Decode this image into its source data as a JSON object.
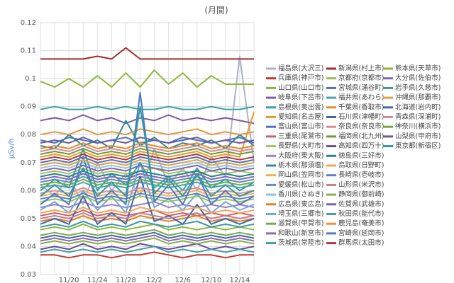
{
  "chart_data": {
    "type": "line",
    "title": "(月間)",
    "ylabel": "μSv/h",
    "categories": [
      null,
      null,
      "11/20",
      null,
      "11/24",
      null,
      "11/28",
      null,
      "12/2",
      null,
      "12/6",
      null,
      "12/10",
      null,
      "12/14",
      null
    ],
    "ylim": [
      0.03,
      0.12
    ],
    "yticks": [
      0.03,
      0.04,
      0.05,
      0.06,
      0.07,
      0.08,
      0.09,
      0.1,
      0.11,
      0.12
    ],
    "grid": true,
    "series": [
      {
        "name": "福島県(大沢三)",
        "color": "#aab4c8",
        "values": [
          0.062,
          0.058,
          0.065,
          0.055,
          0.07,
          0.06,
          0.066,
          0.058,
          0.075,
          0.062,
          0.068,
          0.06,
          0.072,
          0.065,
          0.108,
          0.07
        ]
      },
      {
        "name": "兵庫県(神戸市)",
        "color": "#c0392b",
        "values": [
          0.037,
          0.037,
          0.036,
          0.037,
          0.037,
          0.036,
          0.037,
          0.037,
          0.038,
          0.037,
          0.036,
          0.037,
          0.037,
          0.036,
          0.037,
          0.037
        ]
      },
      {
        "name": "山口県(山口市)",
        "color": "#8cb43c",
        "values": [
          0.046,
          0.047,
          0.046,
          0.048,
          0.046,
          0.047,
          0.046,
          0.047,
          0.048,
          0.046,
          0.047,
          0.046,
          0.047,
          0.046,
          0.047,
          0.046
        ]
      },
      {
        "name": "岐阜県(下呂市)",
        "color": "#7d5ba6",
        "values": [
          0.085,
          0.086,
          0.085,
          0.087,
          0.085,
          0.086,
          0.084,
          0.086,
          0.085,
          0.087,
          0.085,
          0.086,
          0.085,
          0.086,
          0.085,
          0.084
        ]
      },
      {
        "name": "島根県(奥出雲)",
        "color": "#3a9fa6",
        "values": [
          0.089,
          0.09,
          0.089,
          0.089,
          0.09,
          0.089,
          0.09,
          0.089,
          0.089,
          0.09,
          0.089,
          0.089,
          0.09,
          0.089,
          0.089,
          0.09
        ]
      },
      {
        "name": "愛知県(名古屋)",
        "color": "#e89a2f",
        "values": [
          0.072,
          0.073,
          0.072,
          0.074,
          0.072,
          0.073,
          0.072,
          0.074,
          0.073,
          0.072,
          0.073,
          0.074,
          0.072,
          0.073,
          0.072,
          0.088
        ]
      },
      {
        "name": "富山県(富山市)",
        "color": "#4a74b8",
        "values": [
          0.078,
          0.077,
          0.079,
          0.078,
          0.077,
          0.078,
          0.079,
          0.077,
          0.078,
          0.077,
          0.079,
          0.078,
          0.077,
          0.078,
          0.079,
          0.077
        ]
      },
      {
        "name": "三重県(尾鷲市)",
        "color": "#c9626b",
        "values": [
          0.051,
          0.052,
          0.051,
          0.053,
          0.051,
          0.052,
          0.051,
          0.052,
          0.053,
          0.051,
          0.052,
          0.051,
          0.052,
          0.051,
          0.052,
          0.051
        ]
      },
      {
        "name": "長野県(大町市)",
        "color": "#a3c45a",
        "values": [
          0.066,
          0.067,
          0.066,
          0.068,
          0.066,
          0.067,
          0.066,
          0.067,
          0.068,
          0.066,
          0.067,
          0.066,
          0.067,
          0.066,
          0.067,
          0.066
        ]
      },
      {
        "name": "大阪府(東大阪)",
        "color": "#9c7ec0",
        "values": [
          0.054,
          0.055,
          0.054,
          0.056,
          0.054,
          0.055,
          0.054,
          0.055,
          0.056,
          0.054,
          0.055,
          0.054,
          0.055,
          0.054,
          0.055,
          0.054
        ]
      },
      {
        "name": "栃木県(那須塩)",
        "color": "#2f8b9a",
        "values": [
          0.076,
          0.075,
          0.08,
          0.076,
          0.078,
          0.075,
          0.085,
          0.076,
          0.079,
          0.075,
          0.077,
          0.076,
          0.078,
          0.075,
          0.08,
          0.076
        ]
      },
      {
        "name": "岡山県(笠岡市)",
        "color": "#f0b04a",
        "values": [
          0.058,
          0.059,
          0.058,
          0.06,
          0.058,
          0.059,
          0.058,
          0.06,
          0.059,
          0.058,
          0.059,
          0.06,
          0.058,
          0.059,
          0.058,
          0.059
        ]
      },
      {
        "name": "愛媛県(松山市)",
        "color": "#5b8fd0",
        "values": [
          0.063,
          0.064,
          0.063,
          0.065,
          0.063,
          0.064,
          0.063,
          0.065,
          0.064,
          0.063,
          0.064,
          0.065,
          0.063,
          0.064,
          0.063,
          0.064
        ]
      },
      {
        "name": "香川県(さぬき)",
        "color": "#8fc0e0",
        "values": [
          0.068,
          0.069,
          0.068,
          0.07,
          0.068,
          0.069,
          0.068,
          0.07,
          0.069,
          0.068,
          0.069,
          0.07,
          0.068,
          0.069,
          0.068,
          0.069
        ]
      },
      {
        "name": "広島県(東広島)",
        "color": "#d9822b",
        "values": [
          0.049,
          0.05,
          0.049,
          0.051,
          0.049,
          0.05,
          0.049,
          0.051,
          0.05,
          0.049,
          0.05,
          0.051,
          0.049,
          0.05,
          0.049,
          0.05
        ]
      },
      {
        "name": "埼玉県(三郷市)",
        "color": "#6fa8dc",
        "values": [
          0.053,
          0.056,
          0.052,
          0.06,
          0.053,
          0.058,
          0.052,
          0.07,
          0.054,
          0.057,
          0.053,
          0.059,
          0.052,
          0.056,
          0.053,
          0.055
        ]
      },
      {
        "name": "滋賀県(甲賀市)",
        "color": "#7aa84a",
        "values": [
          0.044,
          0.045,
          0.044,
          0.045,
          0.044,
          0.045,
          0.044,
          0.045,
          0.046,
          0.044,
          0.045,
          0.044,
          0.045,
          0.044,
          0.045,
          0.044
        ]
      },
      {
        "name": "和歌山(新宮市)",
        "color": "#8a6bb0",
        "values": [
          0.042,
          0.043,
          0.042,
          0.043,
          0.042,
          0.043,
          0.042,
          0.043,
          0.044,
          0.042,
          0.043,
          0.042,
          0.043,
          0.042,
          0.043,
          0.042
        ]
      },
      {
        "name": "茨城県(常陸市)",
        "color": "#3aa0a0",
        "values": [
          0.06,
          0.064,
          0.061,
          0.075,
          0.06,
          0.066,
          0.062,
          0.07,
          0.061,
          0.065,
          0.06,
          0.068,
          0.061,
          0.064,
          0.06,
          0.063
        ]
      },
      {
        "name": "新潟県(村上市)",
        "color": "#a52a2a",
        "values": [
          0.107,
          0.107,
          0.107,
          0.107,
          0.108,
          0.107,
          0.111,
          0.107,
          0.107,
          0.107,
          0.107,
          0.107,
          0.107,
          0.107,
          0.107,
          0.107
        ]
      },
      {
        "name": "京都府(京都市)",
        "color": "#9bbf4f",
        "values": [
          0.056,
          0.057,
          0.056,
          0.058,
          0.056,
          0.057,
          0.056,
          0.058,
          0.057,
          0.056,
          0.057,
          0.058,
          0.056,
          0.057,
          0.056,
          0.057
        ]
      },
      {
        "name": "宮城県(涌谷町)",
        "color": "#4f6fb0",
        "values": [
          0.07,
          0.071,
          0.07,
          0.072,
          0.07,
          0.071,
          0.07,
          0.072,
          0.071,
          0.07,
          0.071,
          0.072,
          0.07,
          0.071,
          0.07,
          0.071
        ]
      },
      {
        "name": "福井県(あわら)",
        "color": "#4aa3b0",
        "values": [
          0.061,
          0.062,
          0.061,
          0.063,
          0.061,
          0.062,
          0.061,
          0.063,
          0.062,
          0.061,
          0.062,
          0.063,
          0.061,
          0.062,
          0.061,
          0.062
        ]
      },
      {
        "name": "千葉県(香取市)",
        "color": "#e38b2c",
        "values": [
          0.075,
          0.076,
          0.075,
          0.077,
          0.075,
          0.076,
          0.075,
          0.077,
          0.076,
          0.075,
          0.076,
          0.077,
          0.075,
          0.076,
          0.075,
          0.076
        ]
      },
      {
        "name": "石川県(津幡町)",
        "color": "#3f66a8",
        "values": [
          0.048,
          0.05,
          0.048,
          0.058,
          0.048,
          0.052,
          0.048,
          0.065,
          0.049,
          0.051,
          0.048,
          0.055,
          0.048,
          0.05,
          0.048,
          0.05
        ]
      },
      {
        "name": "奈良県(奈良市)",
        "color": "#d98b99",
        "values": [
          0.059,
          0.06,
          0.059,
          0.061,
          0.059,
          0.06,
          0.059,
          0.061,
          0.06,
          0.059,
          0.06,
          0.061,
          0.059,
          0.06,
          0.059,
          0.06
        ]
      },
      {
        "name": "福岡県(北九州)",
        "color": "#6b9e3a",
        "values": [
          0.073,
          0.074,
          0.073,
          0.075,
          0.073,
          0.074,
          0.073,
          0.075,
          0.074,
          0.073,
          0.074,
          0.075,
          0.073,
          0.074,
          0.073,
          0.074
        ]
      },
      {
        "name": "高知県(四万十)",
        "color": "#6a4c93",
        "values": [
          0.039,
          0.04,
          0.039,
          0.041,
          0.039,
          0.04,
          0.039,
          0.041,
          0.04,
          0.039,
          0.04,
          0.041,
          0.039,
          0.04,
          0.039,
          0.04
        ]
      },
      {
        "name": "徳島県(三好市)",
        "color": "#2c7f8c",
        "values": [
          0.065,
          0.066,
          0.065,
          0.067,
          0.065,
          0.066,
          0.065,
          0.067,
          0.066,
          0.065,
          0.066,
          0.067,
          0.065,
          0.066,
          0.065,
          0.066
        ]
      },
      {
        "name": "鳥取県(日野町)",
        "color": "#f2a65a",
        "values": [
          0.052,
          0.053,
          0.052,
          0.054,
          0.052,
          0.053,
          0.052,
          0.054,
          0.053,
          0.052,
          0.053,
          0.054,
          0.052,
          0.053,
          0.052,
          0.053
        ]
      },
      {
        "name": "長崎県(壱岐市)",
        "color": "#5a82c8",
        "values": [
          0.057,
          0.058,
          0.057,
          0.059,
          0.057,
          0.058,
          0.057,
          0.059,
          0.058,
          0.057,
          0.058,
          0.059,
          0.057,
          0.058,
          0.057,
          0.058
        ]
      },
      {
        "name": "山形県(米沢市)",
        "color": "#c77d8a",
        "values": [
          0.05,
          0.051,
          0.05,
          0.052,
          0.05,
          0.051,
          0.05,
          0.052,
          0.051,
          0.05,
          0.051,
          0.052,
          0.05,
          0.051,
          0.05,
          0.051
        ]
      },
      {
        "name": "静岡県(御前崎)",
        "color": "#86b04a",
        "values": [
          0.041,
          0.042,
          0.041,
          0.042,
          0.041,
          0.042,
          0.041,
          0.042,
          0.043,
          0.041,
          0.042,
          0.041,
          0.042,
          0.041,
          0.042,
          0.041
        ]
      },
      {
        "name": "佐賀県(武雄市)",
        "color": "#7b61a8",
        "values": [
          0.067,
          0.068,
          0.067,
          0.069,
          0.067,
          0.068,
          0.067,
          0.069,
          0.068,
          0.067,
          0.068,
          0.069,
          0.067,
          0.068,
          0.067,
          0.068
        ]
      },
      {
        "name": "秋田県(能代市)",
        "color": "#44a0a8",
        "values": [
          0.038,
          0.039,
          0.038,
          0.039,
          0.038,
          0.039,
          0.038,
          0.039,
          0.04,
          0.038,
          0.039,
          0.038,
          0.039,
          0.038,
          0.039,
          0.038
        ]
      },
      {
        "name": "鹿児島(奄美市)",
        "color": "#e8953a",
        "values": [
          0.08,
          0.081,
          0.08,
          0.082,
          0.08,
          0.081,
          0.08,
          0.082,
          0.081,
          0.08,
          0.081,
          0.082,
          0.08,
          0.081,
          0.08,
          0.081
        ]
      },
      {
        "name": "宮崎県(延岡市)",
        "color": "#4c7cc0",
        "values": [
          0.055,
          0.059,
          0.055,
          0.072,
          0.055,
          0.06,
          0.055,
          0.095,
          0.056,
          0.062,
          0.055,
          0.066,
          0.055,
          0.06,
          0.055,
          0.058
        ]
      },
      {
        "name": "群馬県(太田市)",
        "color": "#b03a3a",
        "values": [
          0.071,
          0.072,
          0.071,
          0.073,
          0.071,
          0.072,
          0.071,
          0.073,
          0.072,
          0.071,
          0.072,
          0.073,
          0.071,
          0.072,
          0.071,
          0.072
        ]
      },
      {
        "name": "熊本県(天草市)",
        "color": "#8db83a",
        "values": [
          0.099,
          0.097,
          0.1,
          0.097,
          0.101,
          0.097,
          0.102,
          0.097,
          0.103,
          0.098,
          0.102,
          0.097,
          0.101,
          0.098,
          0.098,
          0.098
        ]
      },
      {
        "name": "大分県(佐伯市)",
        "color": "#8566b5",
        "values": [
          0.064,
          0.065,
          0.064,
          0.066,
          0.064,
          0.065,
          0.064,
          0.066,
          0.065,
          0.064,
          0.065,
          0.066,
          0.064,
          0.065,
          0.064,
          0.065
        ]
      },
      {
        "name": "岩手県(久慈市)",
        "color": "#3a96a0",
        "values": [
          0.047,
          0.048,
          0.047,
          0.049,
          0.047,
          0.048,
          0.047,
          0.049,
          0.048,
          0.047,
          0.048,
          0.049,
          0.047,
          0.048,
          0.047,
          0.048
        ]
      },
      {
        "name": "沖縄県(那覇市)",
        "color": "#e0a040",
        "values": [
          0.069,
          0.07,
          0.069,
          0.071,
          0.069,
          0.07,
          0.069,
          0.071,
          0.07,
          0.069,
          0.07,
          0.071,
          0.069,
          0.07,
          0.069,
          0.07
        ]
      },
      {
        "name": "北海道(岩内町)",
        "color": "#4468a8",
        "values": [
          0.043,
          0.044,
          0.043,
          0.044,
          0.043,
          0.044,
          0.043,
          0.044,
          0.045,
          0.043,
          0.044,
          0.043,
          0.044,
          0.043,
          0.044,
          0.043
        ]
      },
      {
        "name": "青森県(深浦町)",
        "color": "#d4889a",
        "values": [
          0.074,
          0.075,
          0.074,
          0.076,
          0.074,
          0.075,
          0.074,
          0.076,
          0.075,
          0.074,
          0.075,
          0.076,
          0.074,
          0.075,
          0.074,
          0.075
        ]
      },
      {
        "name": "神奈川(横浜市)",
        "color": "#78a83f",
        "values": [
          0.062,
          0.063,
          0.062,
          0.064,
          0.062,
          0.063,
          0.062,
          0.064,
          0.063,
          0.062,
          0.063,
          0.064,
          0.062,
          0.063,
          0.062,
          0.063
        ]
      },
      {
        "name": "山梨県(甲府市)",
        "color": "#7058a0",
        "values": [
          0.077,
          0.078,
          0.077,
          0.079,
          0.077,
          0.078,
          0.077,
          0.079,
          0.078,
          0.077,
          0.078,
          0.079,
          0.077,
          0.078,
          0.077,
          0.078
        ]
      },
      {
        "name": "東京都(新宿区)",
        "color": "#2f9aa0",
        "values": [
          0.058,
          0.062,
          0.058,
          0.068,
          0.058,
          0.063,
          0.058,
          0.09,
          0.059,
          0.064,
          0.058,
          0.066,
          0.058,
          0.062,
          0.058,
          0.06
        ]
      }
    ]
  }
}
